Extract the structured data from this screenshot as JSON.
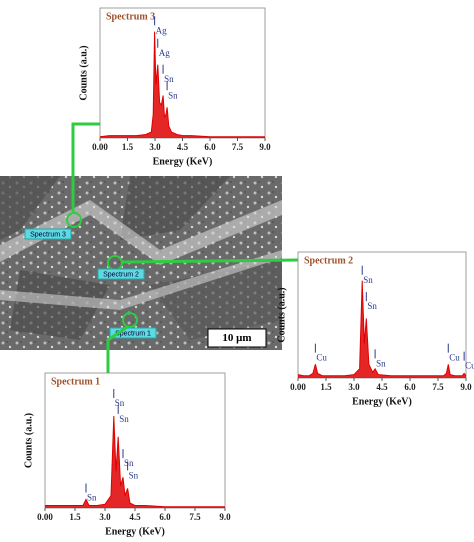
{
  "chart_data": [
    {
      "type": "line",
      "title": "Spectrum 3",
      "xlabel": "Energy (KeV)",
      "ylabel": "Counts (a.u.)",
      "color": "#e00000",
      "x": [
        0,
        0.5,
        1.0,
        1.5,
        2.0,
        2.5,
        2.8,
        2.9,
        2.98,
        3.05,
        3.15,
        3.25,
        3.35,
        3.44,
        3.52,
        3.6,
        3.66,
        3.75,
        3.9,
        4.2,
        4.5,
        5,
        6,
        7,
        8,
        9
      ],
      "values": [
        1,
        2,
        2,
        2,
        2,
        3,
        5,
        20,
        90,
        45,
        62,
        30,
        28,
        36,
        18,
        20,
        26,
        10,
        5,
        3,
        2,
        2,
        1,
        1,
        1,
        1
      ],
      "xlim": [
        0,
        9
      ],
      "ylim": [
        0,
        110
      ],
      "xticks": [
        {
          "value": 0,
          "label": "0.00"
        },
        1.5,
        {
          "value": 3,
          "label": "3.0"
        },
        4.5,
        {
          "value": 6,
          "label": "6.0"
        },
        7.5,
        {
          "value": 9,
          "label": "9.0"
        }
      ],
      "annotations": [
        {
          "text": "Ag",
          "x": 2.98,
          "y": 103
        },
        {
          "text": "Ag",
          "x": 3.15,
          "y": 84
        },
        {
          "text": "Sn",
          "x": 3.44,
          "y": 62
        },
        {
          "text": "Sn",
          "x": 3.66,
          "y": 48
        }
      ]
    },
    {
      "type": "line",
      "title": "Spectrum 2",
      "xlabel": "Energy (KeV)",
      "ylabel": "Counts (a.u.)",
      "color": "#e00000",
      "x": [
        0,
        0.3,
        0.6,
        0.8,
        0.93,
        1.05,
        1.3,
        2,
        2.5,
        3.0,
        3.3,
        3.44,
        3.55,
        3.66,
        3.8,
        4.0,
        4.13,
        4.3,
        5,
        6,
        7,
        7.8,
        7.95,
        8.05,
        8.15,
        8.4,
        8.8,
        8.9,
        9
      ],
      "values": [
        3,
        2,
        2,
        4,
        12,
        4,
        2,
        2,
        2,
        3,
        8,
        85,
        30,
        52,
        12,
        5,
        8,
        3,
        2,
        2,
        2,
        2,
        4,
        12,
        3,
        2,
        2,
        4,
        2
      ],
      "xlim": [
        0,
        9
      ],
      "ylim": [
        0,
        110
      ],
      "xticks": [
        {
          "value": 0,
          "label": "0.00"
        },
        1.5,
        {
          "value": 3,
          "label": "3.0"
        },
        4.5,
        {
          "value": 6,
          "label": "6.0"
        },
        7.5,
        {
          "value": 9,
          "label": "9.0"
        }
      ],
      "annotations": [
        {
          "text": "Cu",
          "x": 0.93,
          "y": 30
        },
        {
          "text": "Sn",
          "x": 3.44,
          "y": 98
        },
        {
          "text": "Sn",
          "x": 3.66,
          "y": 75
        },
        {
          "text": "Sn",
          "x": 4.13,
          "y": 25
        },
        {
          "text": "Cu",
          "x": 8.05,
          "y": 30
        },
        {
          "text": "Cu",
          "x": 8.9,
          "y": 23
        }
      ]
    },
    {
      "type": "line",
      "title": "Spectrum 1",
      "xlabel": "Energy (KeV)",
      "ylabel": "Counts (a.u.)",
      "color": "#e00000",
      "x": [
        0,
        0.5,
        1,
        1.5,
        1.9,
        2.05,
        2.2,
        2.6,
        3.0,
        3.3,
        3.44,
        3.55,
        3.66,
        3.78,
        3.9,
        4.0,
        4.13,
        4.25,
        4.5,
        5,
        6,
        7,
        8,
        9
      ],
      "values": [
        2,
        2,
        2,
        2,
        2,
        7,
        2,
        2,
        3,
        10,
        75,
        30,
        58,
        18,
        25,
        10,
        16,
        4,
        2,
        2,
        1,
        1,
        1,
        1
      ],
      "xlim": [
        0,
        9
      ],
      "ylim": [
        0,
        110
      ],
      "xticks": [
        {
          "value": 0,
          "label": "0.00"
        },
        1.5,
        {
          "value": 3,
          "label": "3.0"
        },
        4.5,
        {
          "value": 6,
          "label": "6.0"
        },
        7.5,
        {
          "value": 9,
          "label": "9.0"
        }
      ],
      "annotations": [
        {
          "text": "Sn",
          "x": 2.05,
          "y": 20
        },
        {
          "text": "Sn",
          "x": 3.44,
          "y": 97
        },
        {
          "text": "Sn",
          "x": 3.66,
          "y": 84
        },
        {
          "text": "Sn",
          "x": 3.9,
          "y": 48
        },
        {
          "text": "Sn",
          "x": 4.13,
          "y": 38
        }
      ]
    }
  ],
  "sem_image": {
    "labels": [
      "Spectrum 3",
      "Spectrum 2",
      "Spectrum 1"
    ],
    "scale_bar": "10 μm"
  }
}
